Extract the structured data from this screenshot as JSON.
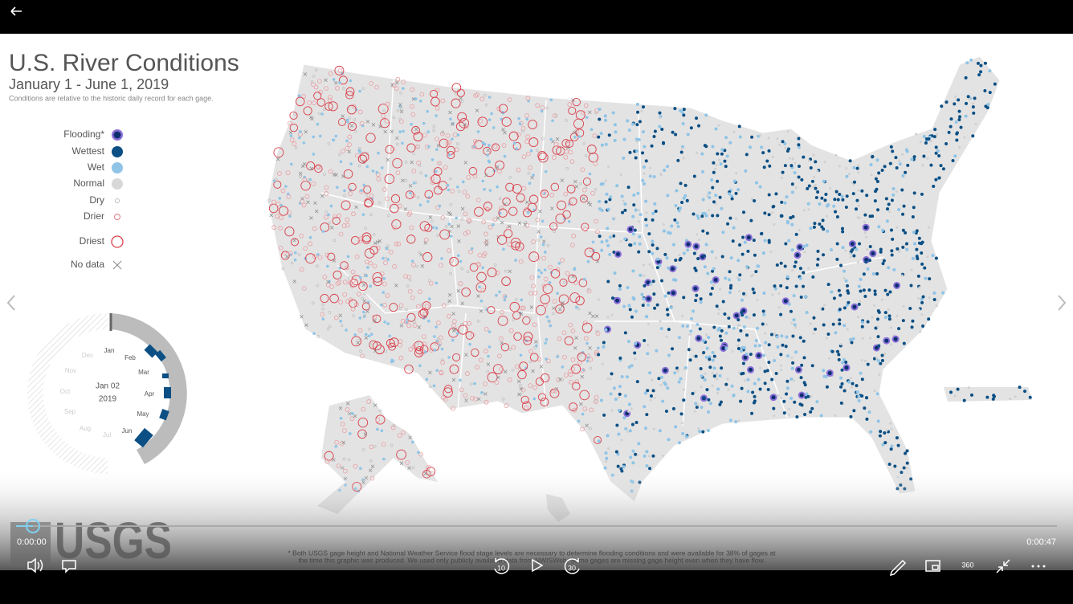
{
  "header": {
    "title": "U.S. River Conditions",
    "subtitle": "January 1 - June 1, 2019",
    "note": "Conditions are relative to the historic daily record for each gage."
  },
  "legend": [
    "Flooding*",
    "Wettest",
    "Wet",
    "Normal",
    "Dry",
    "Drier",
    "Driest",
    "No data"
  ],
  "dial": {
    "months": [
      "Jan",
      "Feb",
      "Mar",
      "Apr",
      "May",
      "Jun",
      "Jul",
      "Aug",
      "Sep",
      "Oct",
      "Nov",
      "Dec"
    ],
    "date": "Jan 02",
    "year": "2019"
  },
  "logo": "USGS",
  "footnote": [
    "* Both USGS gage height and National Weather Service flood stage levels are necessary to determine flooding conditions and were available for 38% of gages at",
    "the time this graphic was produced. We used only publicly available data from NWISWeb. Some gages are missing gage height even when they have flow."
  ],
  "player": {
    "elapsed": "0:00:00",
    "duration": "0:00:47",
    "skip_back": "10",
    "skip_forward": "30",
    "vr": "360"
  }
}
